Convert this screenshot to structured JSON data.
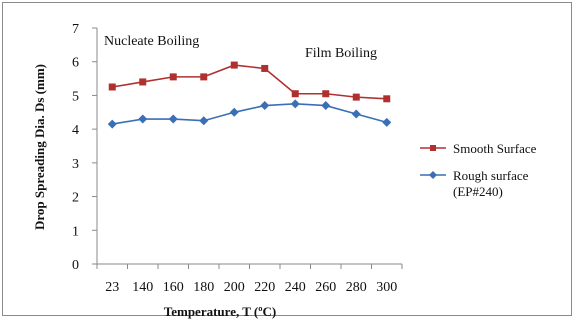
{
  "chart_data": {
    "type": "line",
    "title": "",
    "xlabel": "Temperature, T (ºC)",
    "ylabel": "Drop Spreading Dia. Ds (mm)",
    "categories": [
      "23",
      "140",
      "160",
      "180",
      "200",
      "220",
      "240",
      "260",
      "280",
      "300"
    ],
    "ylim": [
      0,
      7
    ],
    "yticks": [
      0,
      1,
      2,
      3,
      4,
      5,
      6,
      7
    ],
    "grid": false,
    "legend_position": "right",
    "annotations": [
      "Nucleate Boiling",
      "Film  Boiling"
    ],
    "series": [
      {
        "name": "Smooth Surface",
        "marker": "square",
        "color": "#b03030",
        "values": [
          5.25,
          5.4,
          5.55,
          5.55,
          5.9,
          5.8,
          5.05,
          5.05,
          4.95,
          4.9
        ]
      },
      {
        "name": "Rough surface (EP#240)",
        "marker": "diamond",
        "color": "#3a6fb5",
        "values": [
          4.15,
          4.3,
          4.3,
          4.25,
          4.5,
          4.7,
          4.75,
          4.7,
          4.45,
          4.2
        ]
      }
    ]
  }
}
